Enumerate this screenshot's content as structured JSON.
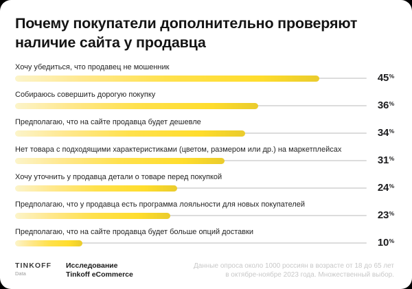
{
  "title": "Почему покупатели дополнительно проверяют наличие сайта у продавца",
  "chart_data": {
    "type": "bar",
    "orientation": "horizontal",
    "title": "Почему покупатели дополнительно проверяют наличие сайта у продавца",
    "categories": [
      "Хочу убедиться, что продавец не мошенник",
      "Собираюсь совершить дорогую покупку",
      "Предполагаю, что на сайте продавца будет дешевле",
      "Нет товара с подходящими характеристиками (цветом, размером или др.) на маркетплейсах",
      "Хочу уточнить у продавца детали о товаре перед покупкой",
      "Предполагаю, что у продавца есть программа лояльности для новых покупателей",
      "Предполагаю, что на сайте продавца будет больше опций доставки"
    ],
    "values": [
      45,
      36,
      34,
      31,
      24,
      23,
      10
    ],
    "unit": "%",
    "xlim": [
      0,
      52
    ],
    "grid": false,
    "legend": false,
    "value_label_position": "right"
  },
  "footer": {
    "brand": "TINKOFF",
    "brand_sub": "Data",
    "research_line1": "Исследование",
    "research_line2": "Tinkoff eCommerce",
    "note_line1": "Данные опроса около 1000 россиян в возрасте от 18 до 65 лет",
    "note_line2": "в октябре-ноябре 2023 года. Множественный выбор."
  },
  "colors": {
    "background": "#000000",
    "card": "#FFFFFF",
    "accent_yellow": "#FFDD2D",
    "bar_gradient_start": "#FCF4CA",
    "bar_gradient_end": "#EACB2E",
    "track": "#DCDCDC",
    "text_primary": "#1C1C1E",
    "note_gray": "#C8C8C8"
  }
}
